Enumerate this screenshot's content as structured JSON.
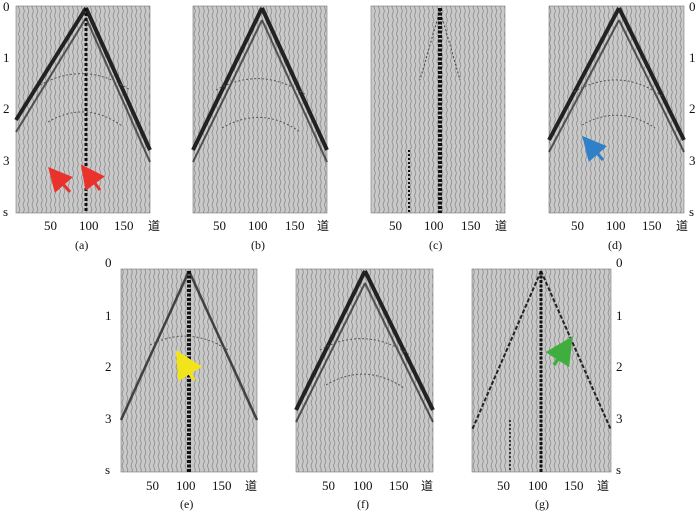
{
  "figure": {
    "x_tick_labels": [
      "50",
      "100",
      "150"
    ],
    "x_unit": "道",
    "y_tick_labels": [
      "0",
      "1",
      "2",
      "3"
    ],
    "y_unit": "s",
    "panels": [
      {
        "id": "a",
        "caption": "(a)",
        "y_axis_side": "left",
        "content": "full-wavefield",
        "arrows": [
          {
            "color": "#e8322b",
            "direction": "up-left",
            "target": "event near trace 60 at 3.3 s"
          },
          {
            "color": "#e8322b",
            "direction": "up-left",
            "target": "event near trace 110 at 3.3 s"
          }
        ]
      },
      {
        "id": "b",
        "caption": "(b)",
        "y_axis_side": "none",
        "content": "full-wavefield",
        "arrows": []
      },
      {
        "id": "c",
        "caption": "(c)",
        "y_axis_side": "none",
        "content": "residual",
        "arrows": []
      },
      {
        "id": "d",
        "caption": "(d)",
        "y_axis_side": "right",
        "content": "full-wavefield",
        "arrows": [
          {
            "color": "#2f7fc9",
            "direction": "up-left",
            "target": "event near trace 50 at 2.8 s"
          }
        ]
      },
      {
        "id": "e",
        "caption": "(e)",
        "y_axis_side": "left",
        "content": "residual-wavefield",
        "arrows": [
          {
            "color": "#f2e41a",
            "direction": "up-left",
            "target": "event near trace 105 at 2.0 s"
          }
        ]
      },
      {
        "id": "f",
        "caption": "(f)",
        "y_axis_side": "none",
        "content": "full-wavefield",
        "arrows": []
      },
      {
        "id": "g",
        "caption": "(g)",
        "y_axis_side": "right",
        "content": "sparse-wavefield",
        "arrows": [
          {
            "color": "#3fae3f",
            "direction": "up-right",
            "target": "event near trace 120 at 1.9 s"
          }
        ]
      }
    ]
  }
}
